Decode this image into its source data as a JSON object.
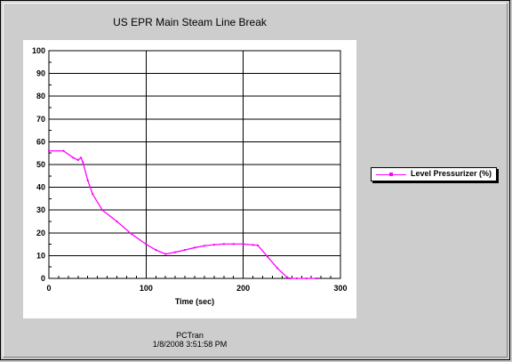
{
  "window": {
    "title": "US EPR Main Steam Line Break"
  },
  "footer": {
    "app_name": "PCTran",
    "timestamp": "1/8/2008 3:51:58 PM"
  },
  "legend": {
    "label": "Level Pressurizer (%)"
  },
  "chart_data": {
    "type": "line",
    "title": "US EPR Main Steam Line Break",
    "xlabel": "Time (sec)",
    "ylabel": "",
    "xlim": [
      0,
      300
    ],
    "ylim": [
      0,
      100
    ],
    "x_ticks": [
      0,
      100,
      200,
      300
    ],
    "y_ticks": [
      0,
      10,
      20,
      30,
      40,
      50,
      60,
      70,
      80,
      90,
      100
    ],
    "grid": true,
    "legend_position": "right",
    "series": [
      {
        "name": "Level Pressurizer (%)",
        "color": "#ff00ff",
        "x": [
          0,
          15,
          25,
          30,
          33,
          35,
          40,
          45,
          55,
          70,
          85,
          100,
          110,
          120,
          130,
          140,
          150,
          160,
          170,
          180,
          190,
          200,
          210,
          215,
          225,
          235,
          245,
          248,
          255,
          265,
          275
        ],
        "y": [
          56,
          56,
          53,
          52,
          53,
          51,
          43,
          37,
          30,
          25,
          19.5,
          15,
          12.5,
          10.7,
          11.5,
          12.5,
          13.5,
          14.3,
          14.8,
          15.1,
          15.1,
          15.1,
          14.7,
          14.5,
          9.5,
          4.5,
          0.5,
          0,
          0,
          0,
          0
        ]
      }
    ]
  }
}
